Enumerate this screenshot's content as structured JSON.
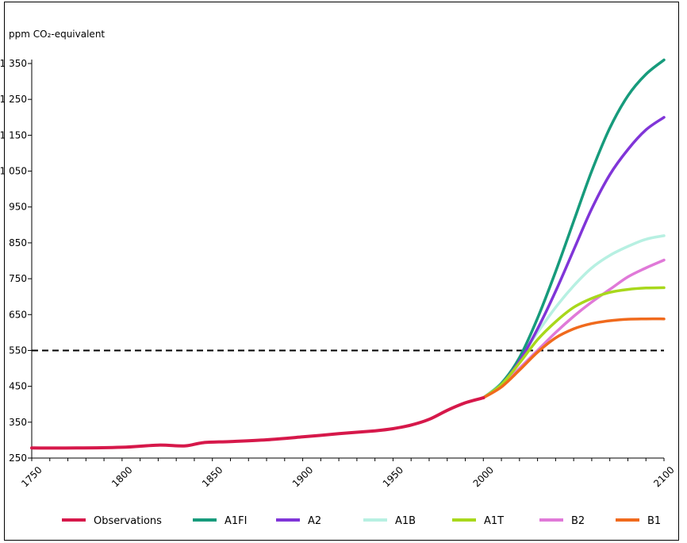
{
  "chart_data": {
    "type": "line",
    "ylabel": "ppm CO₂-equivalent",
    "xlim": [
      1750,
      2100
    ],
    "ylim": [
      250,
      1350
    ],
    "x_ticks": [
      1750,
      1800,
      1850,
      1900,
      1950,
      2000,
      2100
    ],
    "x_tick_labels": [
      "1750",
      "1800",
      "1850",
      "1900",
      "1950",
      "2000",
      "2100"
    ],
    "y_ticks": [
      250,
      350,
      450,
      550,
      650,
      750,
      850,
      950,
      1050,
      1150,
      1250,
      1350
    ],
    "y_tick_labels": [
      "250",
      "350",
      "450",
      "550",
      "650",
      "750",
      "850",
      "950",
      "1 050",
      "1 150",
      "1 250",
      "1 350"
    ],
    "reference_line": {
      "y": 550,
      "style": "dashed",
      "color": "#000000"
    },
    "legend_position": "bottom",
    "series": [
      {
        "name": "Observations",
        "color": "#d6184a",
        "x": [
          1750,
          1775,
          1800,
          1820,
          1835,
          1845,
          1860,
          1880,
          1900,
          1920,
          1940,
          1950,
          1960,
          1970,
          1980,
          1990,
          2000
        ],
        "y": [
          278,
          278,
          280,
          286,
          284,
          293,
          296,
          301,
          309,
          318,
          326,
          332,
          342,
          358,
          383,
          404,
          418
        ]
      },
      {
        "name": "A1FI",
        "color": "#179b7c",
        "x": [
          2000,
          2010,
          2020,
          2030,
          2040,
          2050,
          2060,
          2070,
          2080,
          2090,
          2100
        ],
        "y": [
          418,
          458,
          530,
          640,
          770,
          910,
          1050,
          1170,
          1260,
          1320,
          1360
        ]
      },
      {
        "name": "A2",
        "color": "#8035d8",
        "x": [
          2000,
          2010,
          2020,
          2030,
          2040,
          2050,
          2060,
          2070,
          2080,
          2090,
          2100
        ],
        "y": [
          418,
          455,
          520,
          610,
          715,
          830,
          945,
          1040,
          1110,
          1165,
          1200
        ]
      },
      {
        "name": "A1B",
        "color": "#b7f0e2",
        "x": [
          2000,
          2010,
          2020,
          2030,
          2040,
          2050,
          2060,
          2070,
          2080,
          2090,
          2100
        ],
        "y": [
          418,
          460,
          525,
          600,
          670,
          730,
          780,
          815,
          840,
          860,
          870
        ]
      },
      {
        "name": "A1T",
        "color": "#a8d81c",
        "x": [
          2000,
          2010,
          2020,
          2030,
          2040,
          2050,
          2060,
          2070,
          2080,
          2090,
          2100
        ],
        "y": [
          418,
          455,
          515,
          580,
          630,
          670,
          695,
          712,
          720,
          724,
          725
        ]
      },
      {
        "name": "B2",
        "color": "#e079d8",
        "x": [
          2000,
          2010,
          2020,
          2030,
          2040,
          2050,
          2060,
          2070,
          2080,
          2090,
          2100
        ],
        "y": [
          418,
          450,
          500,
          550,
          600,
          645,
          685,
          720,
          755,
          780,
          802
        ]
      },
      {
        "name": "B1",
        "color": "#f06a1d",
        "x": [
          2000,
          2010,
          2020,
          2030,
          2040,
          2050,
          2060,
          2070,
          2080,
          2090,
          2100
        ],
        "y": [
          418,
          448,
          495,
          545,
          585,
          610,
          625,
          633,
          637,
          638,
          638
        ]
      }
    ]
  }
}
